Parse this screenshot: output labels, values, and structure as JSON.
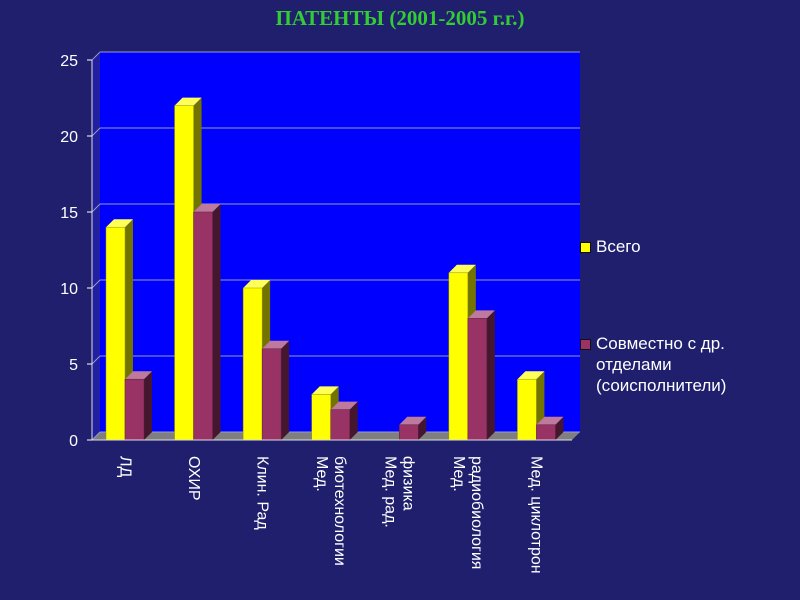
{
  "chart_data": {
    "type": "bar",
    "title": "ПАТЕНТЫ (2001-2005 г.г.)",
    "categories": [
      [
        "ЛД"
      ],
      [
        "ОХИР"
      ],
      [
        "Клин. Рад"
      ],
      [
        "Мед.",
        "биотехнологии"
      ],
      [
        "Мед. рад.",
        "физика"
      ],
      [
        "Мед.",
        "радиобиология"
      ],
      [
        "Мед. циклотрон"
      ]
    ],
    "series": [
      {
        "name": "Всего",
        "color": "#ffff00",
        "values": [
          14,
          22,
          10,
          3,
          0,
          11,
          4
        ]
      },
      {
        "name": "Совместно с др. отделами (соисполнители)",
        "color": "#993366",
        "values": [
          4,
          15,
          6,
          2,
          1,
          8,
          1
        ]
      }
    ],
    "ylim": [
      0,
      25
    ],
    "yticks": [
      "0",
      "5",
      "10",
      "15",
      "20",
      "25"
    ],
    "grid": true,
    "legend": "right",
    "plot_background": "#0000ff"
  }
}
